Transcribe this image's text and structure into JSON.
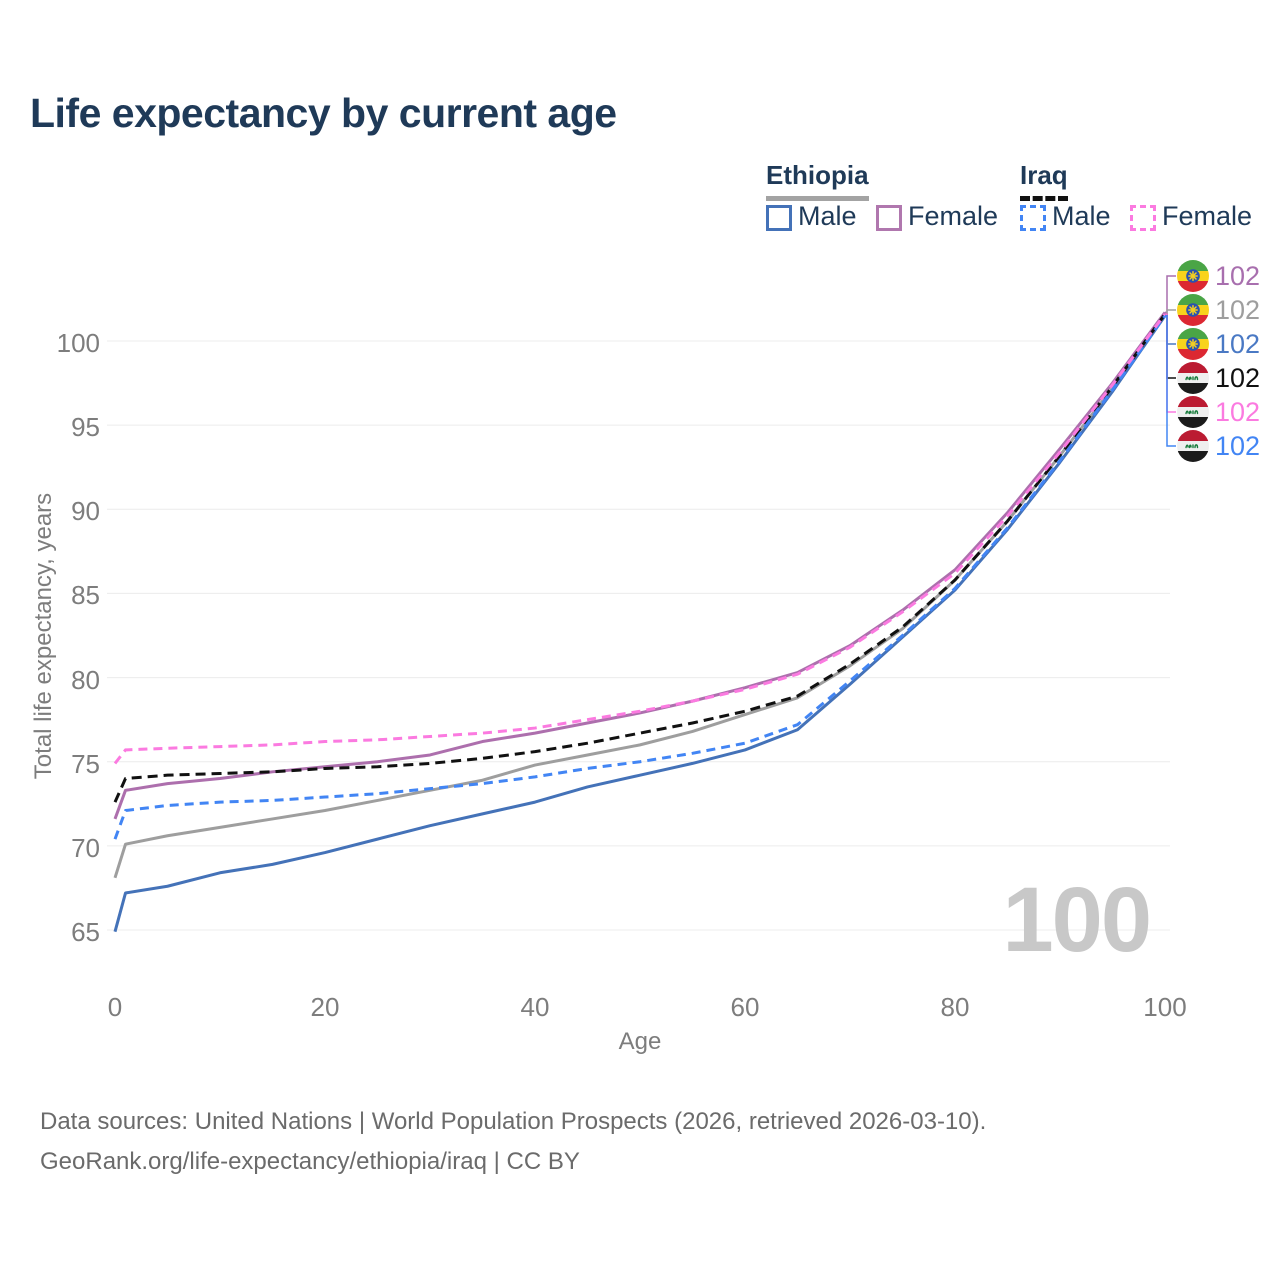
{
  "title": "Life expectancy by current age",
  "legend": {
    "groups": [
      {
        "label": "Ethiopia",
        "underline_color": "#a3a3a3",
        "underline_style": "solid",
        "items": [
          {
            "label": "Male",
            "color": "#4472b8",
            "dash": false
          },
          {
            "label": "Female",
            "color": "#b077ae",
            "dash": false
          }
        ]
      },
      {
        "label": "Iraq",
        "underline_color": "#111111",
        "underline_style": "dashed",
        "items": [
          {
            "label": "Male",
            "color": "#4285f4",
            "dash": true
          },
          {
            "label": "Female",
            "color": "#fb7ae0",
            "dash": true
          }
        ]
      }
    ]
  },
  "end_labels": [
    {
      "flag": "ethiopia",
      "series": "ethiopia_female",
      "value": "102",
      "color": "#a86fae"
    },
    {
      "flag": "ethiopia",
      "series": "ethiopia_total",
      "value": "102",
      "color": "#9e9e9e"
    },
    {
      "flag": "ethiopia",
      "series": "ethiopia_male",
      "value": "102",
      "color": "#4a79c4"
    },
    {
      "flag": "iraq",
      "series": "iraq_total",
      "value": "102",
      "color": "#111111"
    },
    {
      "flag": "iraq",
      "series": "iraq_female",
      "value": "102",
      "color": "#fb7ae0"
    },
    {
      "flag": "iraq",
      "series": "iraq_male",
      "value": "102",
      "color": "#4285f4"
    }
  ],
  "watermark": "100",
  "axes": {
    "x": {
      "label": "Age",
      "ticks": [
        "0",
        "20",
        "40",
        "60",
        "80",
        "100"
      ]
    },
    "y": {
      "label": "Total life expectancy, years",
      "ticks": [
        "65",
        "70",
        "75",
        "80",
        "85",
        "90",
        "95",
        "100"
      ]
    }
  },
  "footer": {
    "line1": "Data sources: United Nations | World Population Prospects (2026, retrieved 2026-03-10).",
    "line2": "GeoRank.org/life-expectancy/ethiopia/iraq | CC BY"
  },
  "chart_data": {
    "type": "line",
    "title": "Life expectancy by current age",
    "xlabel": "Age",
    "ylabel": "Total life expectancy, years",
    "xlim": [
      0,
      100
    ],
    "ylim": [
      63,
      103
    ],
    "y_gridlines": [
      65,
      70,
      75,
      80,
      85,
      90,
      95,
      100
    ],
    "grid": "horizontal",
    "legend_position": "top-right",
    "x": [
      0,
      1,
      5,
      10,
      15,
      20,
      25,
      30,
      35,
      40,
      45,
      50,
      55,
      60,
      65,
      70,
      75,
      80,
      85,
      90,
      95,
      100
    ],
    "series": [
      {
        "name": "ethiopia_male",
        "country": "Ethiopia",
        "sex": "Male",
        "color": "#4472b8",
        "dash": null,
        "values": [
          64.9,
          67.2,
          67.6,
          68.4,
          68.9,
          69.6,
          70.4,
          71.2,
          71.9,
          72.6,
          73.5,
          74.2,
          74.9,
          75.7,
          76.9,
          79.6,
          82.4,
          85.2,
          88.8,
          92.8,
          97.0,
          101.5
        ]
      },
      {
        "name": "ethiopia_female",
        "country": "Ethiopia",
        "sex": "Female",
        "color": "#ad6fad",
        "dash": null,
        "values": [
          71.6,
          73.3,
          73.7,
          74.0,
          74.4,
          74.7,
          75.0,
          75.4,
          76.2,
          76.7,
          77.3,
          77.9,
          78.6,
          79.4,
          80.3,
          81.9,
          84.0,
          86.4,
          89.8,
          93.6,
          97.5,
          101.7
        ]
      },
      {
        "name": "ethiopia_total",
        "country": "Ethiopia",
        "sex": "Both",
        "color": "#9e9e9e",
        "dash": null,
        "values": [
          68.1,
          70.1,
          70.6,
          71.1,
          71.6,
          72.1,
          72.7,
          73.3,
          73.9,
          74.8,
          75.4,
          76.0,
          76.8,
          77.8,
          78.8,
          80.7,
          82.9,
          85.8,
          89.3,
          93.2,
          97.2,
          101.6
        ]
      },
      {
        "name": "iraq_male",
        "country": "Iraq",
        "sex": "Male",
        "color": "#4285f4",
        "dash": "9 6",
        "values": [
          70.4,
          72.1,
          72.4,
          72.6,
          72.7,
          72.9,
          73.1,
          73.4,
          73.7,
          74.1,
          74.6,
          75.0,
          75.5,
          76.1,
          77.2,
          79.8,
          82.5,
          85.3,
          88.9,
          92.9,
          97.1,
          101.5
        ]
      },
      {
        "name": "iraq_female",
        "country": "Iraq",
        "sex": "Female",
        "color": "#fb7ae0",
        "dash": "9 6",
        "values": [
          74.9,
          75.7,
          75.8,
          75.9,
          76.0,
          76.2,
          76.3,
          76.5,
          76.7,
          77.0,
          77.5,
          78.0,
          78.6,
          79.3,
          80.2,
          81.8,
          83.9,
          86.2,
          89.6,
          93.4,
          97.4,
          101.6
        ]
      },
      {
        "name": "iraq_total",
        "country": "Iraq",
        "sex": "Both",
        "color": "#111111",
        "dash": "10 6",
        "values": [
          72.6,
          74.0,
          74.2,
          74.3,
          74.4,
          74.6,
          74.7,
          74.9,
          75.2,
          75.6,
          76.1,
          76.7,
          77.3,
          78.0,
          78.9,
          80.8,
          83.0,
          85.8,
          89.3,
          93.2,
          97.3,
          101.6
        ]
      }
    ],
    "end_value_labels": [
      102,
      102,
      102,
      102,
      102,
      102
    ]
  }
}
